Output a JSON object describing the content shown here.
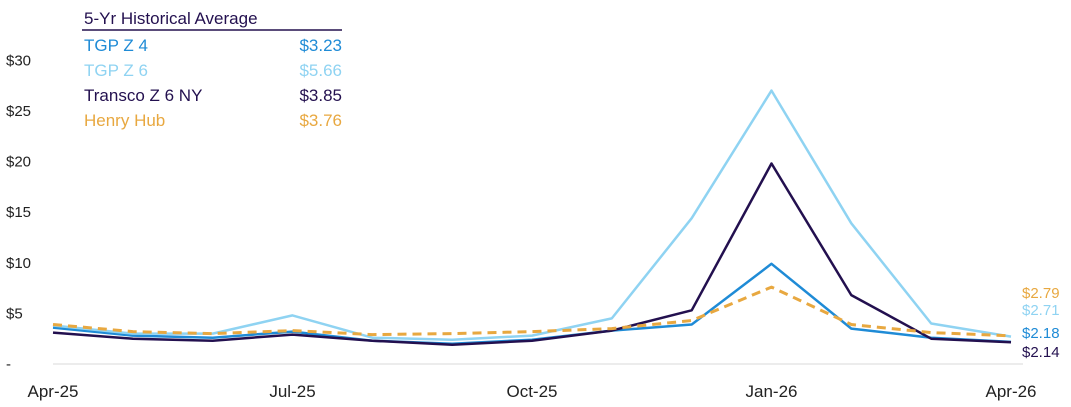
{
  "chart_data": {
    "type": "line",
    "x": [
      "Apr-25",
      "May-25",
      "Jun-25",
      "Jul-25",
      "Aug-25",
      "Sep-25",
      "Oct-25",
      "Nov-25",
      "Dec-25",
      "Jan-26",
      "Feb-26",
      "Mar-26",
      "Apr-26"
    ],
    "x_tick_labels": [
      "Apr-25",
      "Jul-25",
      "Oct-25",
      "Jan-26",
      "Apr-26"
    ],
    "y_tick_labels": [
      "-",
      "$5",
      "$10",
      "$15",
      "$20",
      "$25",
      "$30"
    ],
    "ylim": [
      0,
      32
    ],
    "series": [
      {
        "name": "TGP Z 4",
        "color": "#1f8bd6",
        "dashed": false,
        "values": [
          3.6,
          2.8,
          2.6,
          3.2,
          2.3,
          2.0,
          2.4,
          3.3,
          3.9,
          9.9,
          3.5,
          2.6,
          2.18
        ]
      },
      {
        "name": "TGP Z 6",
        "color": "#8fd3f2",
        "dashed": false,
        "values": [
          3.8,
          3.0,
          3.0,
          4.8,
          2.6,
          2.4,
          2.8,
          4.5,
          14.4,
          27.0,
          13.9,
          4.0,
          2.71
        ]
      },
      {
        "name": "Transco Z 6 NY",
        "color": "#23104f",
        "dashed": false,
        "values": [
          3.1,
          2.5,
          2.3,
          2.9,
          2.3,
          1.9,
          2.3,
          3.3,
          5.3,
          19.8,
          6.8,
          2.5,
          2.14
        ]
      },
      {
        "name": "Henry Hub",
        "color": "#e8a840",
        "dashed": true,
        "values": [
          3.9,
          3.2,
          3.0,
          3.3,
          2.9,
          3.0,
          3.2,
          3.5,
          4.3,
          7.6,
          3.9,
          3.1,
          2.79
        ]
      }
    ],
    "end_labels": [
      {
        "text": "$2.79",
        "color": "#e8a840"
      },
      {
        "text": "$2.71",
        "color": "#8fd3f2"
      },
      {
        "text": "$2.18",
        "color": "#1f8bd6"
      },
      {
        "text": "$2.14",
        "color": "#23104f"
      }
    ],
    "legend": {
      "title": "5-Yr Historical Average",
      "title_color": "#23104f",
      "placement": "top-left",
      "items": [
        {
          "label": "TGP Z 4",
          "value": "$3.23",
          "color": "#1f8bd6"
        },
        {
          "label": "TGP Z 6",
          "value": "$5.66",
          "color": "#8fd3f2"
        },
        {
          "label": "Transco Z 6 NY",
          "value": "$3.85",
          "color": "#23104f"
        },
        {
          "label": "Henry Hub",
          "value": "$3.76",
          "color": "#e8a840"
        }
      ]
    },
    "grid": false
  }
}
